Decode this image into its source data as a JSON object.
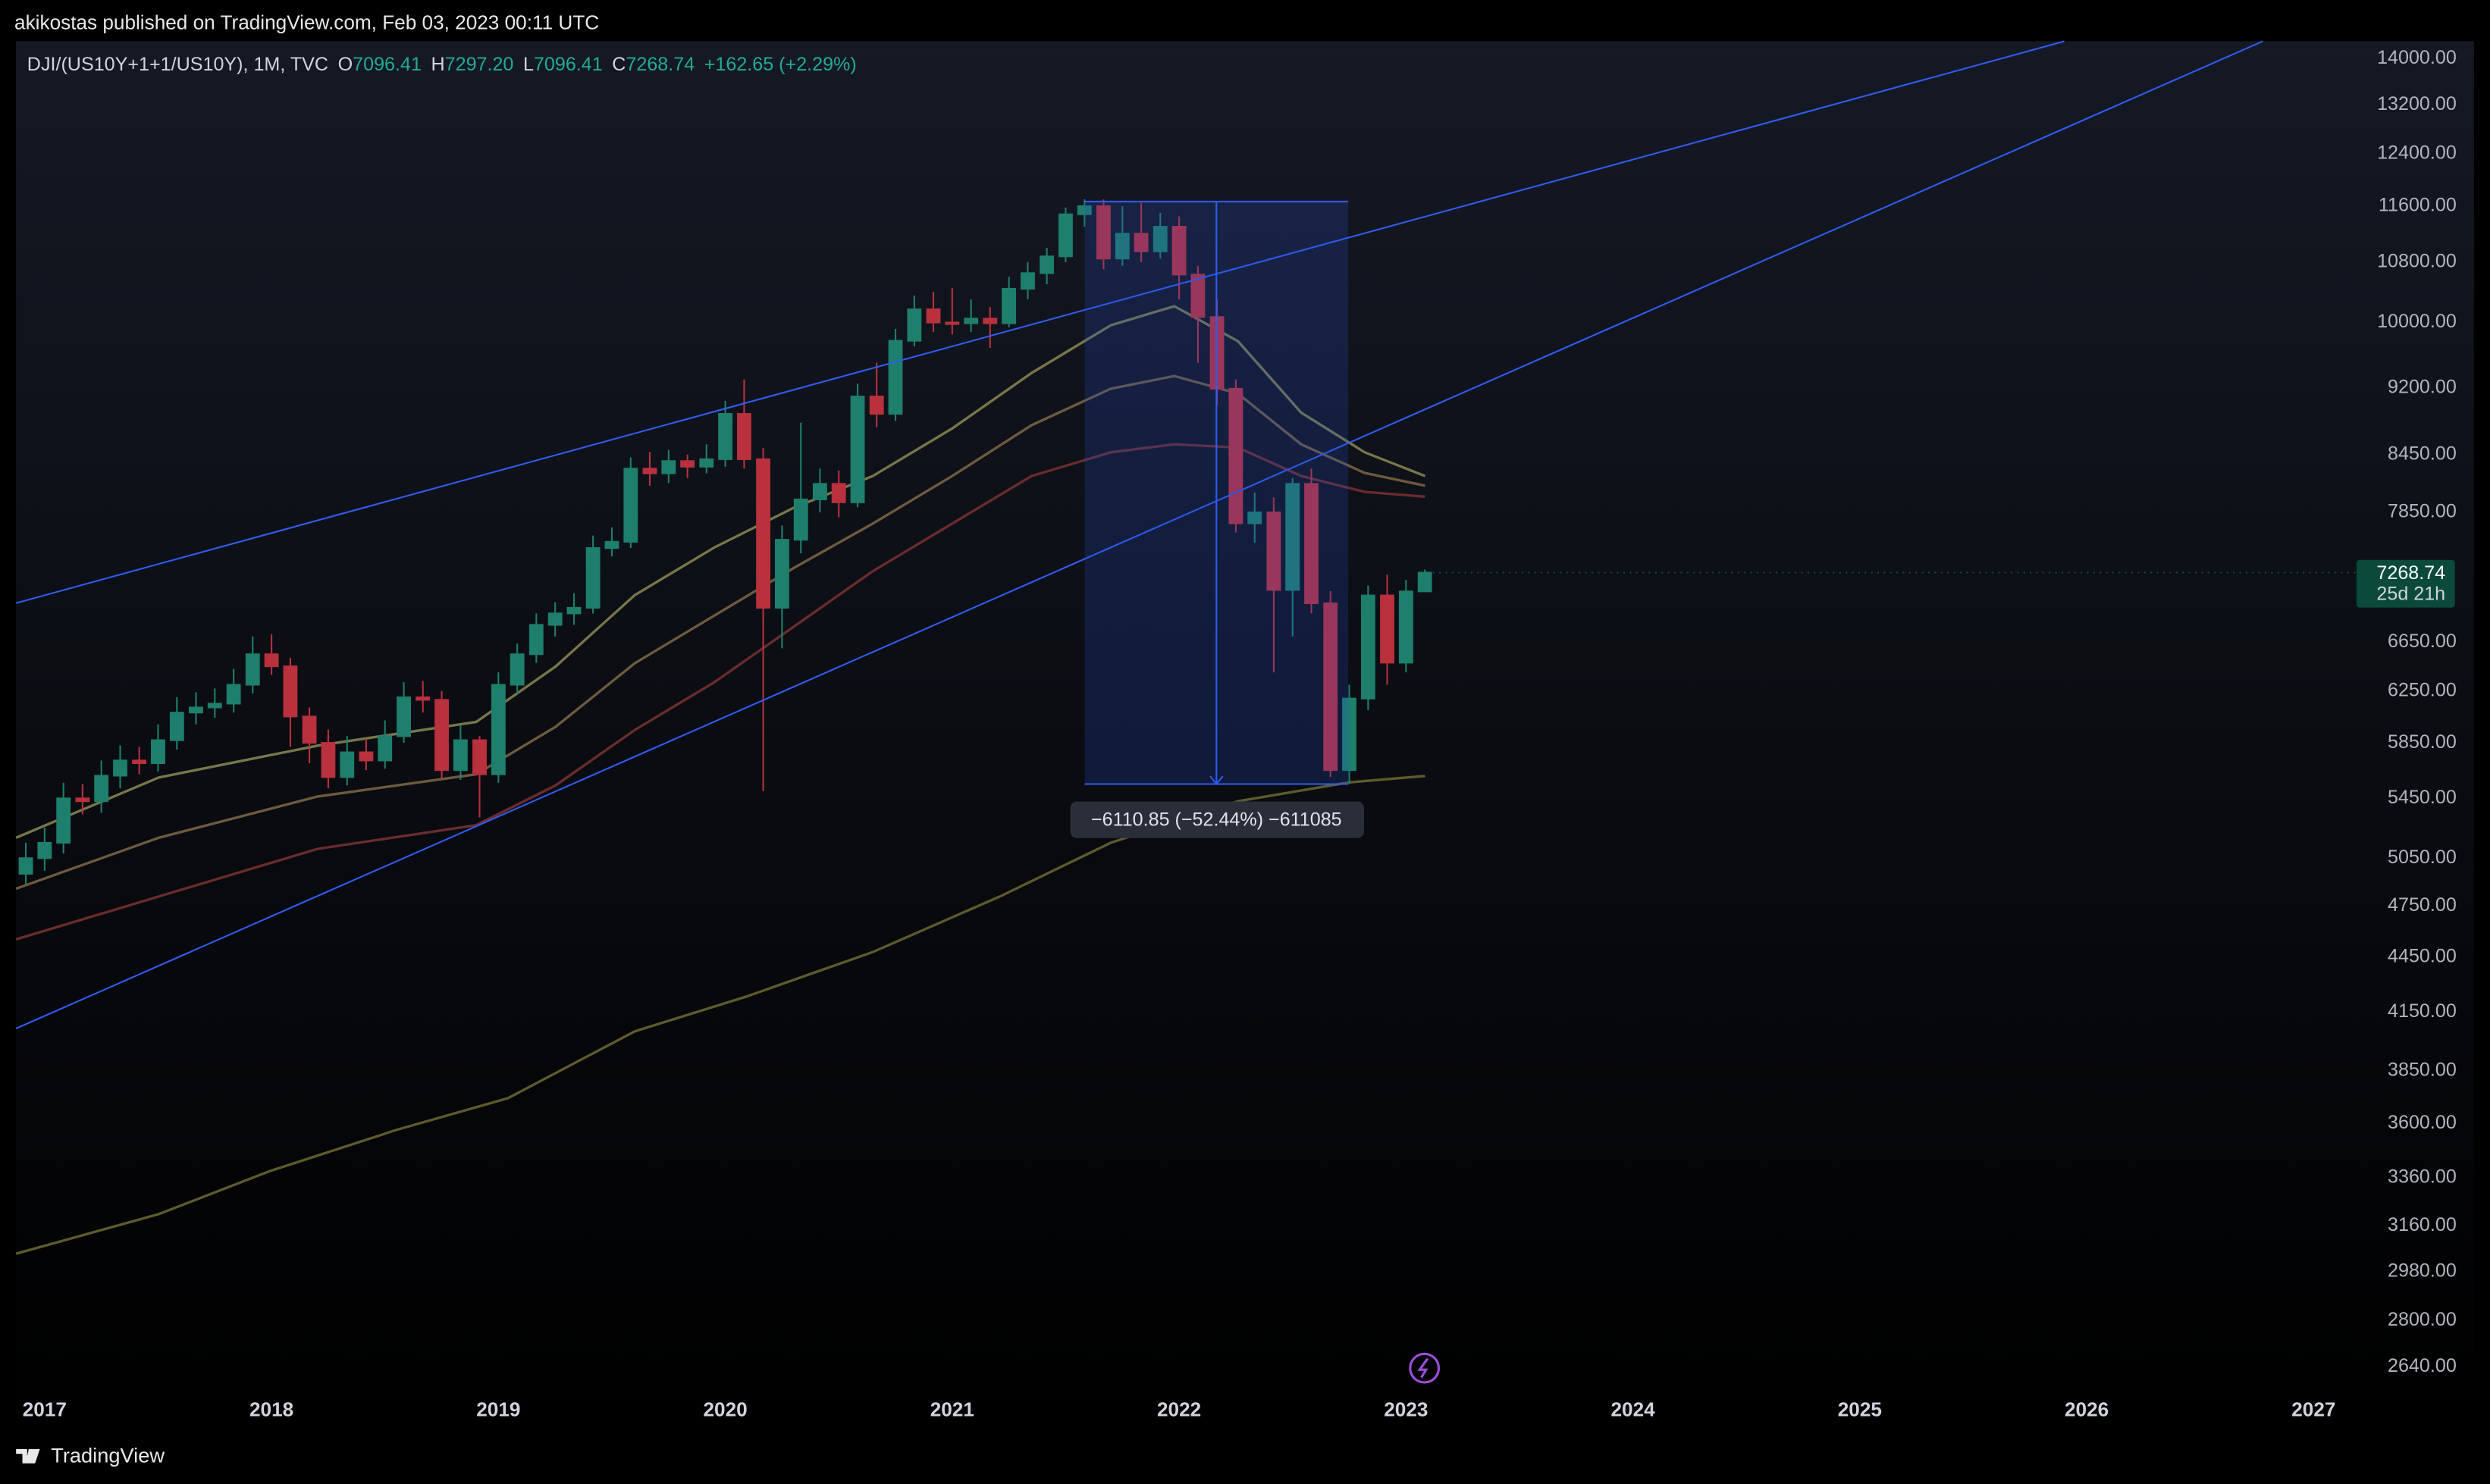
{
  "header": {
    "published": "akikostas published on TradingView.com, Feb 03, 2023 00:11 UTC"
  },
  "footer": {
    "brand": "TradingView"
  },
  "chart_data": {
    "type": "candlestick",
    "symbol": "DJI/(US10Y+1+1/US10Y), 1M, TVC",
    "ohlc_legend": {
      "o_key": "O",
      "o": "7096.41",
      "h_key": "H",
      "h": "7297.20",
      "l_key": "L",
      "l": "7096.41",
      "c_key": "C",
      "c": "7268.74",
      "change": "+162.65 (+2.29%)"
    },
    "price_tag": {
      "price": "7268.74",
      "countdown": "25d 21h"
    },
    "measure_label": "−6110.85 (−52.44%) −611085",
    "log_scale": true,
    "up_color": "#1e7f6c",
    "down_color": "#b8313d",
    "xlim": [
      2016.874,
      2027.105
    ],
    "xticks": [
      2017,
      2018,
      2019,
      2020,
      2021,
      2022,
      2023,
      2024,
      2025,
      2026,
      2027
    ],
    "ylim": [
      2551,
      14315
    ],
    "yticks": [
      {
        "value": 14000,
        "label": "14000.00"
      },
      {
        "value": 13200,
        "label": "13200.00"
      },
      {
        "value": 12400,
        "label": "12400.00"
      },
      {
        "value": 11600,
        "label": "11600.00"
      },
      {
        "value": 10800,
        "label": "10800.00"
      },
      {
        "value": 10000,
        "label": "10000.00"
      },
      {
        "value": 9200,
        "label": "9200.00"
      },
      {
        "value": 8450,
        "label": "8450.00"
      },
      {
        "value": 7850,
        "label": "7850.00"
      },
      {
        "value": 6650,
        "label": "6650.00"
      },
      {
        "value": 6250,
        "label": "6250.00"
      },
      {
        "value": 5850,
        "label": "5850.00"
      },
      {
        "value": 5450,
        "label": "5450.00"
      },
      {
        "value": 5050,
        "label": "5050.00"
      },
      {
        "value": 4750,
        "label": "4750.00"
      },
      {
        "value": 4450,
        "label": "4450.00"
      },
      {
        "value": 4150,
        "label": "4150.00"
      },
      {
        "value": 3850,
        "label": "3850.00"
      },
      {
        "value": 3600,
        "label": "3600.00"
      },
      {
        "value": 3360,
        "label": "3360.00"
      },
      {
        "value": 3160,
        "label": "3160.00"
      },
      {
        "value": 2980,
        "label": "2980.00"
      },
      {
        "value": 2800,
        "label": "2800.00"
      },
      {
        "value": 2640,
        "label": "2640.00"
      }
    ],
    "candles": {
      "x": [
        2016.917,
        2017,
        2017.083,
        2017.167,
        2017.25,
        2017.333,
        2017.417,
        2017.5,
        2017.583,
        2017.667,
        2017.75,
        2017.833,
        2017.917,
        2018,
        2018.083,
        2018.167,
        2018.25,
        2018.333,
        2018.417,
        2018.5,
        2018.583,
        2018.667,
        2018.75,
        2018.833,
        2018.917,
        2019,
        2019.083,
        2019.167,
        2019.25,
        2019.333,
        2019.417,
        2019.5,
        2019.583,
        2019.667,
        2019.75,
        2019.833,
        2019.917,
        2020,
        2020.083,
        2020.167,
        2020.25,
        2020.333,
        2020.417,
        2020.5,
        2020.583,
        2020.667,
        2020.75,
        2020.833,
        2020.917,
        2021,
        2021.083,
        2021.167,
        2021.25,
        2021.333,
        2021.417,
        2021.5,
        2021.583,
        2021.667,
        2021.75,
        2021.833,
        2021.917,
        2022,
        2022.083,
        2022.167,
        2022.25,
        2022.333,
        2022.417,
        2022.5,
        2022.583,
        2022.667,
        2022.75,
        2022.833,
        2022.917,
        2023,
        2023.083
      ],
      "open": [
        4950,
        5050,
        5150,
        5450,
        5430,
        5610,
        5720,
        5700,
        5870,
        6080,
        6120,
        6150,
        6300,
        6550,
        6450,
        6050,
        5850,
        5600,
        5780,
        5720,
        5900,
        6200,
        6180,
        5650,
        5870,
        5620,
        6300,
        6550,
        6800,
        6900,
        6950,
        7500,
        7560,
        8300,
        8250,
        8380,
        8320,
        8400,
        8900,
        8400,
        6950,
        7580,
        7980,
        8140,
        7950,
        9100,
        8900,
        9770,
        10170,
        10000,
        9990,
        10050,
        9990,
        10440,
        10650,
        10880,
        11480,
        11600,
        10850,
        11200,
        10950,
        11300,
        10630,
        10070,
        9190,
        7740,
        7850,
        7110,
        8140,
        6990,
        5650,
        6190,
        7060,
        6480,
        7096.41
      ],
      "high": [
        5150,
        5250,
        5560,
        5550,
        5720,
        5830,
        5820,
        5990,
        6200,
        6240,
        6270,
        6430,
        6700,
        6720,
        6520,
        6120,
        5950,
        5900,
        5880,
        6020,
        6320,
        6330,
        6250,
        5980,
        5900,
        6400,
        6640,
        6900,
        7000,
        7080,
        7620,
        7700,
        8420,
        8480,
        8500,
        8450,
        8560,
        9050,
        9300,
        8520,
        7720,
        8800,
        8300,
        8280,
        9250,
        9500,
        9920,
        10350,
        10400,
        10450,
        10300,
        10200,
        10600,
        10800,
        11000,
        11580,
        11700,
        11700,
        11600,
        11650,
        11500,
        11450,
        10750,
        10300,
        9300,
        8050,
        8000,
        8200,
        8300,
        7100,
        6300,
        7150,
        7250,
        7200,
        7297.2
      ],
      "low": [
        4880,
        4970,
        5080,
        5340,
        5350,
        5520,
        5620,
        5640,
        5800,
        5990,
        6040,
        6080,
        6230,
        6380,
        5820,
        5700,
        5520,
        5540,
        5650,
        5660,
        5850,
        6080,
        5590,
        5580,
        5320,
        5560,
        6230,
        6480,
        6700,
        6800,
        6900,
        7420,
        7500,
        8120,
        8150,
        8200,
        8250,
        8320,
        8300,
        5500,
        6600,
        7450,
        7850,
        7800,
        7900,
        8750,
        8820,
        9700,
        9880,
        9850,
        9880,
        9680,
        9940,
        10300,
        10500,
        10800,
        11300,
        10700,
        10750,
        10800,
        10850,
        10300,
        9500,
        9000,
        7650,
        7550,
        6400,
        6700,
        6900,
        5600,
        5550,
        6100,
        6300,
        6400,
        7096.41
      ],
      "close": [
        5050,
        5150,
        5450,
        5430,
        5610,
        5720,
        5700,
        5870,
        6080,
        6120,
        6150,
        6300,
        6550,
        6450,
        6050,
        5850,
        5600,
        5780,
        5720,
        5900,
        6200,
        6180,
        5650,
        5870,
        5620,
        6300,
        6550,
        6800,
        6900,
        6950,
        7500,
        7560,
        8300,
        8250,
        8380,
        8320,
        8400,
        8900,
        8400,
        6950,
        7580,
        7980,
        8140,
        7950,
        9100,
        8900,
        9770,
        10170,
        10000,
        9990,
        10050,
        9990,
        10440,
        10650,
        10880,
        11480,
        11600,
        10850,
        11200,
        10950,
        11300,
        10630,
        10070,
        9190,
        7740,
        7850,
        7110,
        8140,
        6990,
        5650,
        6190,
        7060,
        6480,
        7096.41,
        7268.74
      ]
    },
    "lines": [
      {
        "color": "#77774a",
        "x": [
          2016.874,
          2017.503,
          2018.203,
          2018.902,
          2019.252,
          2019.601,
          2019.951,
          2020.301,
          2020.65,
          2021.0,
          2021.35,
          2021.699,
          2021.979,
          2022.259,
          2022.538,
          2022.818,
          2023.084
        ],
        "values": [
          5183,
          5597,
          5829,
          6008,
          6448,
          7063,
          7505,
          7895,
          8222,
          8736,
          9377,
          9965,
          10210,
          9765,
          8914,
          8474,
          8222
        ]
      },
      {
        "color": "#6e5a3e",
        "x": [
          2016.874,
          2017.503,
          2018.203,
          2018.902,
          2019.252,
          2019.601,
          2019.951,
          2020.301,
          2020.65,
          2021.0,
          2021.35,
          2021.699,
          2021.979,
          2022.259,
          2022.538,
          2022.818,
          2023.084
        ],
        "values": [
          4857,
          5183,
          5463,
          5620,
          5971,
          6475,
          6880,
          7311,
          7738,
          8222,
          8773,
          9190,
          9340,
          9134,
          8561,
          8254,
          8121
        ]
      },
      {
        "color": "#6b2c2c",
        "x": [
          2016.874,
          2017.503,
          2018.203,
          2018.902,
          2019.252,
          2019.601,
          2019.951,
          2020.301,
          2020.65,
          2021.0,
          2021.35,
          2021.699,
          2021.979,
          2022.259,
          2022.538,
          2022.818,
          2023.084
        ],
        "values": [
          4553,
          4809,
          5110,
          5267,
          5541,
          5947,
          6320,
          6783,
          7282,
          7738,
          8222,
          8474,
          8561,
          8526,
          8222,
          8057,
          8008
        ]
      },
      {
        "color": "#5e5a2c",
        "x": [
          2016.874,
          2017.503,
          2017.993,
          2018.552,
          2019.042,
          2019.601,
          2020.091,
          2020.65,
          2021.21,
          2021.699,
          2022.259,
          2022.748,
          2023.084
        ],
        "values": [
          3049,
          3207,
          3388,
          3571,
          3718,
          4049,
          4232,
          4480,
          4809,
          5150,
          5430,
          5562,
          5608
        ]
      }
    ]
  }
}
